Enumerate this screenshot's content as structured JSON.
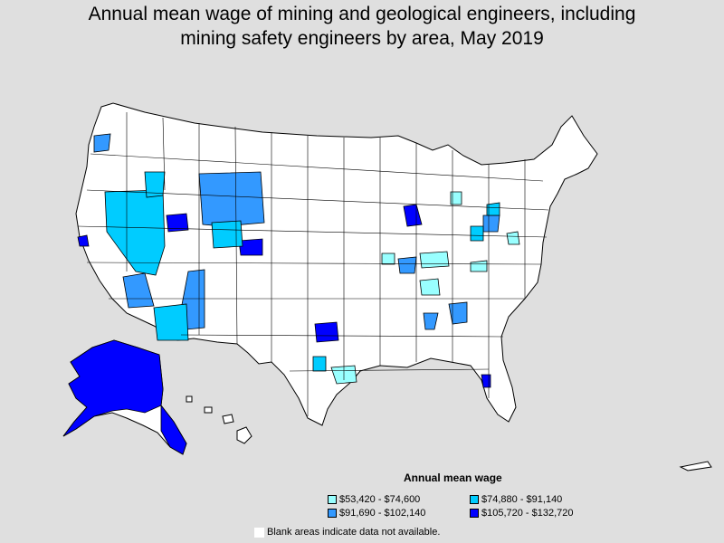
{
  "title_line1": "Annual mean wage of mining and geological engineers, including",
  "title_line2": "mining safety engineers by area, May 2019",
  "legend": {
    "title": "Annual mean wage",
    "items": [
      {
        "label": "$53,420 - $74,600",
        "color": "#99ffff"
      },
      {
        "label": "$74,880 - $91,140",
        "color": "#00ccff"
      },
      {
        "label": "$91,690 - $102,140",
        "color": "#3399ff"
      },
      {
        "label": "$105,720 - $132,720",
        "color": "#0000ff"
      }
    ]
  },
  "note": "Blank areas indicate data not available.",
  "colors": {
    "background": "#dfdfdf",
    "land": "#ffffff",
    "border": "#000000"
  }
}
